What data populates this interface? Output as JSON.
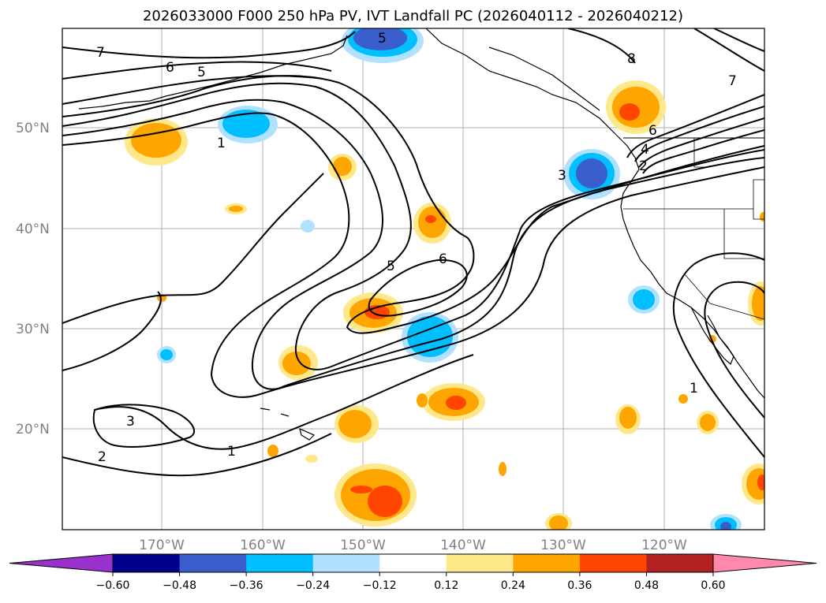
{
  "title": "2026033000 F000 250 hPa PV, IVT Landfall PC (2026040112 - 2026040212)",
  "lat_labels": [
    "50°N",
    "40°N",
    "30°N",
    "20°N"
  ],
  "lon_labels": [
    "170°W",
    "160°W",
    "150°W",
    "140°W",
    "130°W",
    "120°W"
  ],
  "colorbar": {
    "ticks": [
      "−0.60",
      "−0.48",
      "−0.36",
      "−0.24",
      "−0.12",
      "0.12",
      "0.24",
      "0.36",
      "0.48",
      "0.60"
    ],
    "colors": [
      "#9932cc",
      "#00008b",
      "#3a5fcd",
      "#00bfff",
      "#b0e2ff",
      "#ffffff",
      "#ffe88a",
      "#ffa500",
      "#ff4500",
      "#b22222",
      "#ff89ab"
    ]
  },
  "contour_labels": [
    "7",
    "6",
    "5",
    "5",
    "8",
    "7",
    "6",
    "4",
    "2",
    "3",
    "1",
    "5",
    "6",
    "3",
    "2",
    "1",
    "1"
  ],
  "colors": {
    "pos_light": "#ffe88a",
    "pos_mid": "#ffa500",
    "pos_strong": "#ff4500",
    "neg_light": "#b0e2ff",
    "neg_mid": "#00bfff",
    "neg_strong": "#3a5fcd"
  }
}
